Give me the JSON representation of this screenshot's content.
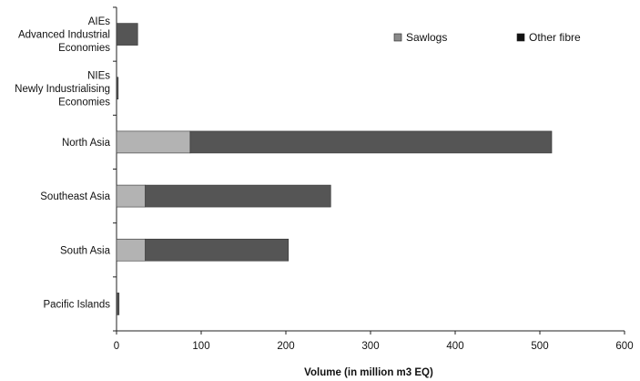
{
  "chart_data": {
    "type": "bar",
    "orientation": "horizontal",
    "stacked": true,
    "categories": [
      [
        "AIEs",
        "Advanced Industrial",
        "Economies"
      ],
      [
        "NIEs",
        "Newly Industrialising",
        "Economies"
      ],
      [
        "North Asia"
      ],
      [
        "Southeast Asia"
      ],
      [
        "South Asia"
      ],
      [
        "Pacific Islands"
      ]
    ],
    "series": [
      {
        "name": "Sawlogs",
        "values": [
          0,
          0,
          87,
          34,
          34,
          0
        ],
        "color": "#b3b3b3"
      },
      {
        "name": "Other fibre",
        "values": [
          25,
          2,
          427,
          219,
          169,
          3
        ],
        "color": "#555555"
      }
    ],
    "xlabel": "Volume (in million m3 EQ)",
    "xlim": [
      0,
      600
    ],
    "xticks": [
      0,
      100,
      200,
      300,
      400,
      500,
      600
    ],
    "legend_position": "top-right",
    "legend_swatch_colors": [
      "#8a8a8a",
      "#111111"
    ],
    "grid": false
  }
}
